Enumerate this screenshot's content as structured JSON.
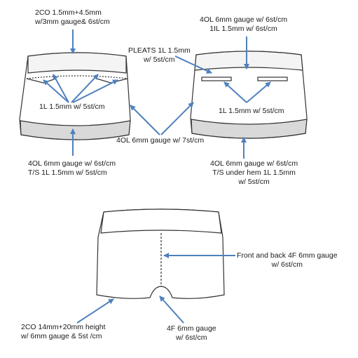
{
  "labels": {
    "front_waistband": [
      "2CO 1.5mm+4.5mm",
      "w/3mm gauge& 6st/cm"
    ],
    "back_waistband": [
      "4OL 6mm gauge w/ 6st/cm",
      "1IL 1.5mm w/ 6st/cm"
    ],
    "pleats": [
      "PLEATS 1L 1.5mm",
      "w/ 5st/cm"
    ],
    "front_1l": "1L 1.5mm w/ 5st/cm",
    "back_1l": "1L 1.5mm w/ 5st/cm",
    "center_4ol": "4OL 6mm gauge  w/ 7st/cm",
    "front_hem": [
      "4OL 6mm gauge w/ 6st/cm",
      "T/S  1L 1.5mm w/ 5st/cm"
    ],
    "back_hem": [
      "4OL 6mm gauge w/ 6st/cm",
      "T/S under hem  1L 1.5mm",
      "w/ 5st/cm"
    ],
    "center_seam": [
      "Front and back 4F 6mm gauge",
      "w/ 6st/cm"
    ],
    "bottom_waistband": [
      "2CO 14mm+20mm height",
      "w/ 6mm gauge & 5st /cm"
    ],
    "crotch_4f": [
      "4F 6mm gauge",
      "w/ 6st/cm"
    ]
  },
  "colors": {
    "outline": "#333333",
    "fabric": "#ffffff",
    "hem_band": "#d9d9d9",
    "waist_band": "#f4f4f4",
    "arrow": "#4f81bd"
  }
}
